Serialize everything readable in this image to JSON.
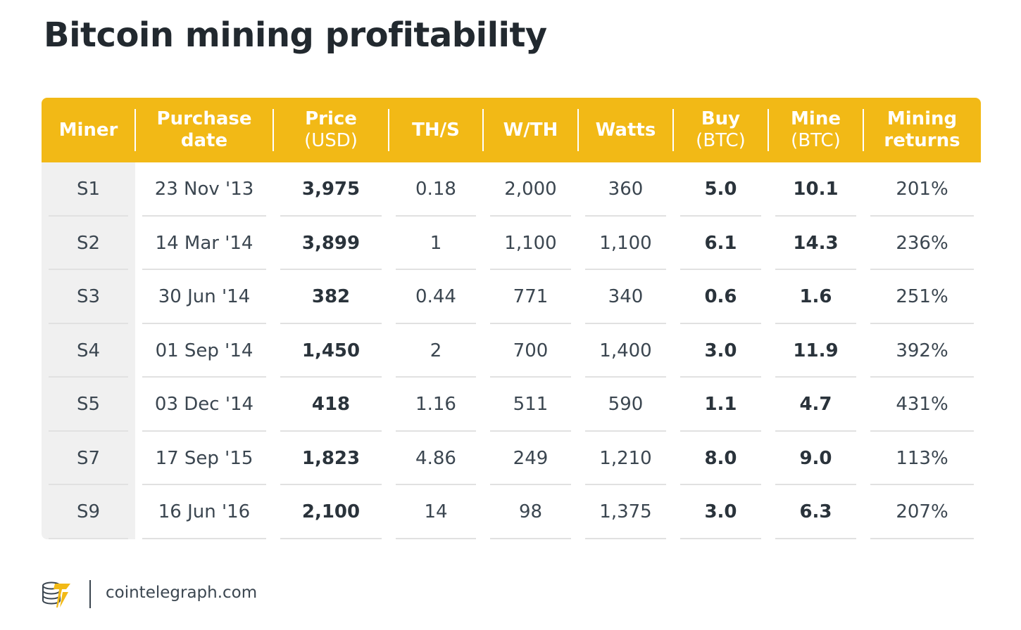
{
  "title": "Bitcoin mining profitability",
  "colors": {
    "header_bg": "#f2b916",
    "header_text": "#ffffff",
    "title_text": "#22292f",
    "body_text": "#3b4650",
    "miner_column_bg": "#f0f0f0",
    "row_rule": "#e1e1e1"
  },
  "chart_data": {
    "type": "table",
    "columns": [
      {
        "label": "Miner",
        "unit": ""
      },
      {
        "label": "Purchase",
        "unit": "date"
      },
      {
        "label": "Price",
        "unit": "(USD)"
      },
      {
        "label": "TH/S",
        "unit": ""
      },
      {
        "label": "W/TH",
        "unit": ""
      },
      {
        "label": "Watts",
        "unit": ""
      },
      {
        "label": "Buy",
        "unit": "(BTC)"
      },
      {
        "label": "Mine",
        "unit": "(BTC)"
      },
      {
        "label": "Mining",
        "unit": "returns"
      }
    ],
    "rows": [
      [
        "S1",
        "23 Nov '13",
        "3,975",
        "0.18",
        "2,000",
        "360",
        "5.0",
        "10.1",
        "201%"
      ],
      [
        "S2",
        "14 Mar '14",
        "3,899",
        "1",
        "1,100",
        "1,100",
        "6.1",
        "14.3",
        "236%"
      ],
      [
        "S3",
        "30 Jun '14",
        "382",
        "0.44",
        "771",
        "340",
        "0.6",
        "1.6",
        "251%"
      ],
      [
        "S4",
        "01 Sep '14",
        "1,450",
        "2",
        "700",
        "1,400",
        "3.0",
        "11.9",
        "392%"
      ],
      [
        "S5",
        "03 Dec '14",
        "418",
        "1.16",
        "511",
        "590",
        "1.1",
        "4.7",
        "431%"
      ],
      [
        "S7",
        "17 Sep '15",
        "1,823",
        "4.86",
        "249",
        "1,210",
        "8.0",
        "9.0",
        "113%"
      ],
      [
        "S9",
        "16 Jun '16",
        "2,100",
        "14",
        "98",
        "1,375",
        "3.0",
        "6.3",
        "207%"
      ]
    ]
  },
  "footer": {
    "logo_icon": "cointelegraph-logo-icon",
    "site": "cointelegraph.com"
  }
}
